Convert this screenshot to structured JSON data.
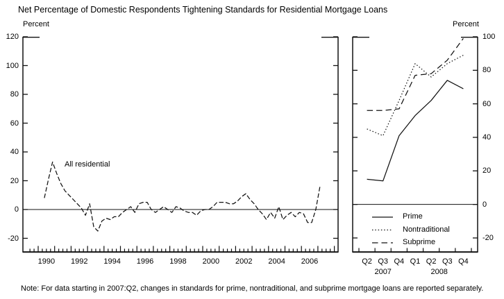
{
  "header": {
    "title": "Net Percentage of Domestic Respondents Tightening Standards for Residential Mortgage Loans"
  },
  "left_panel": {
    "axis_unit_label": "Percent",
    "annotation": "All residential"
  },
  "right_panel": {
    "axis_unit_label": "Percent"
  },
  "note": "Note: For data starting in 2007:Q2, changes in standards for prime, nontraditional, and subprime mortgage loans are reported separately.",
  "chart_data": [
    {
      "type": "line",
      "panel": "left",
      "series_name": "All residential",
      "line_style": "broken-solid",
      "frequency": "quarterly",
      "x_range": "1990:Q2 to 2007:Q1",
      "ylabel": "Percent",
      "ylim": [
        -30,
        120
      ],
      "yticks": [
        120,
        100,
        80,
        60,
        40,
        20,
        0,
        -20
      ],
      "xtick_labels": [
        "1990",
        "1992",
        "1994",
        "1996",
        "1998",
        "2000",
        "2002",
        "2004",
        "2006"
      ],
      "zero_line": true,
      "grid": false,
      "values": [
        8,
        21,
        33,
        25,
        18,
        13,
        10,
        7,
        4,
        1,
        -4,
        4,
        -12,
        -15,
        -8,
        -6,
        -7,
        -5,
        -5,
        -2,
        0,
        2,
        -2,
        4,
        5,
        5,
        0,
        -2,
        0,
        2,
        0,
        -2,
        2,
        1,
        -1,
        -2,
        -2,
        -4,
        -1,
        0,
        0,
        2,
        5,
        5,
        5,
        4,
        4,
        6,
        9,
        11,
        7,
        4,
        0,
        -3,
        -7,
        -2,
        -6,
        2,
        -7,
        -4,
        -2,
        -5,
        -2,
        -3,
        -9,
        -9,
        0,
        16
      ]
    },
    {
      "type": "line",
      "panel": "right",
      "ylabel": "Percent",
      "ylim": [
        -29,
        100
      ],
      "yticks": [
        100,
        80,
        60,
        40,
        20,
        0,
        -20
      ],
      "categories": [
        "Q2",
        "Q3",
        "Q4",
        "Q1",
        "Q2",
        "Q3",
        "Q4"
      ],
      "category_years": [
        {
          "label": "2007",
          "span": [
            0,
            2
          ]
        },
        {
          "label": "2008",
          "span": [
            3,
            6
          ]
        }
      ],
      "zero_line": true,
      "grid": false,
      "legend_position": "inside-bottom",
      "series": [
        {
          "name": "Prime",
          "line_style": "solid",
          "values": [
            15,
            14,
            41,
            53,
            62,
            74,
            69
          ]
        },
        {
          "name": "Nontraditional",
          "line_style": "dotted",
          "values": [
            45,
            41,
            62,
            84,
            76,
            84,
            89
          ]
        },
        {
          "name": "Subprime",
          "line_style": "dashed",
          "values": [
            56,
            56,
            57,
            77,
            78,
            86,
            99
          ]
        }
      ]
    }
  ],
  "colors": {
    "line": "#111111",
    "text": "#000000",
    "background": "#ffffff"
  }
}
